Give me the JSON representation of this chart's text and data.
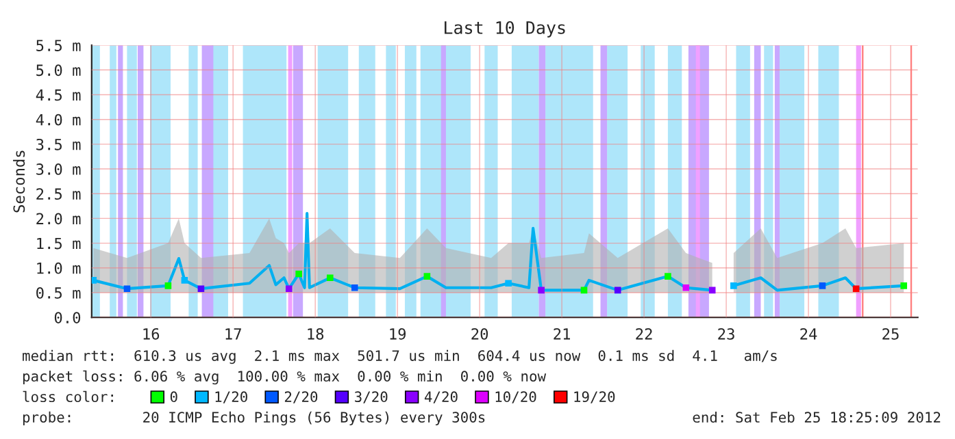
{
  "chart_data": {
    "type": "line",
    "title": "Last 10 Days",
    "ylabel": "Seconds",
    "legend_title": "loss color:",
    "xlim": [
      15.28,
      25.33
    ],
    "xticks": [
      16,
      17,
      18,
      19,
      20,
      21,
      22,
      23,
      24,
      25
    ],
    "ylim": [
      0,
      5.5
    ],
    "yticks": [
      {
        "value": 0,
        "label": "0.0"
      },
      {
        "value": 0.5,
        "label": "0.5 m"
      },
      {
        "value": 1.0,
        "label": "1.0 m"
      },
      {
        "value": 1.5,
        "label": "1.5 m"
      },
      {
        "value": 2.0,
        "label": "2.0 m"
      },
      {
        "value": 2.5,
        "label": "2.5 m"
      },
      {
        "value": 3.0,
        "label": "3.0 m"
      },
      {
        "value": 3.5,
        "label": "3.5 m"
      },
      {
        "value": 4.0,
        "label": "4.0 m"
      },
      {
        "value": 4.5,
        "label": "4.5 m"
      },
      {
        "value": 5.0,
        "label": "5.0 m"
      },
      {
        "value": 5.5,
        "label": "5.5 m"
      }
    ],
    "grid": true,
    "legend": "bottom",
    "series": [
      {
        "color": "#00b0f0",
        "x": [
          15.3,
          15.71,
          16.21,
          16.34,
          16.41,
          16.61,
          17.2,
          17.44,
          17.52,
          17.62,
          17.68,
          17.8,
          17.87,
          17.9,
          17.93,
          18.18,
          18.48,
          19.03,
          19.36,
          19.59,
          20.14,
          20.35,
          20.6,
          20.65,
          20.75,
          21.27,
          21.33,
          21.68,
          22.29,
          22.51,
          22.83,
          22.95,
          23.09,
          23.42,
          23.62,
          24.17,
          24.45,
          24.58,
          25.16
        ],
        "values": [
          0.75,
          0.58,
          0.64,
          1.19,
          0.75,
          0.58,
          0.69,
          1.05,
          0.66,
          0.8,
          0.58,
          0.88,
          0.6,
          2.1,
          0.6,
          0.8,
          0.6,
          0.58,
          0.83,
          0.6,
          0.6,
          0.69,
          0.6,
          1.8,
          0.55,
          0.55,
          0.75,
          0.55,
          0.83,
          0.6,
          0.55,
          null,
          0.64,
          0.8,
          0.55,
          0.64,
          0.8,
          0.58,
          0.64
        ],
        "lower": [
          0.5,
          0.5,
          0.5,
          0.5,
          0.5,
          0.5,
          0.5,
          0.5,
          0.5,
          0.5,
          0.5,
          0.5,
          0.5,
          0.5,
          0.5,
          0.5,
          0.5,
          0.5,
          0.5,
          0.5,
          0.5,
          0.5,
          0.5,
          0.5,
          0.5,
          0.5,
          0.5,
          0.5,
          0.5,
          0.5,
          0.5,
          null,
          0.5,
          0.5,
          0.5,
          0.5,
          0.5,
          0.5,
          0.5
        ],
        "upper": [
          1.4,
          1.2,
          1.5,
          2.0,
          1.5,
          1.2,
          1.3,
          2.0,
          1.6,
          1.5,
          1.3,
          1.5,
          1.5,
          2.1,
          1.5,
          1.8,
          1.3,
          1.2,
          1.8,
          1.4,
          1.2,
          1.5,
          1.5,
          1.8,
          1.2,
          1.3,
          1.7,
          1.2,
          1.8,
          1.3,
          1.1,
          null,
          1.3,
          1.8,
          1.2,
          1.5,
          1.8,
          1.4,
          1.5
        ]
      },
      {
        "type": "scatter",
        "name": "0",
        "color": "#00ff00",
        "x": [
          16.21,
          17.8,
          18.18,
          19.36,
          21.27,
          22.29,
          25.16
        ],
        "values": [
          0.64,
          0.88,
          0.8,
          0.83,
          0.55,
          0.83,
          0.64
        ]
      },
      {
        "type": "scatter",
        "name": "1/20",
        "color": "#00b8ff",
        "x": [
          15.3,
          16.41,
          20.35,
          23.09
        ],
        "values": [
          0.75,
          0.75,
          0.69,
          0.64
        ]
      },
      {
        "type": "scatter",
        "name": "2/20",
        "color": "#0059ff",
        "x": [
          15.71,
          18.48,
          24.17
        ],
        "values": [
          0.58,
          0.6,
          0.64
        ]
      },
      {
        "type": "scatter",
        "name": "3/20",
        "color": "#5500ff",
        "x": [
          16.61,
          21.68
        ],
        "values": [
          0.58,
          0.55
        ]
      },
      {
        "type": "scatter",
        "name": "4/20",
        "color": "#8a00ff",
        "x": [
          17.68,
          20.75,
          22.83
        ],
        "values": [
          0.58,
          0.55,
          0.55
        ]
      },
      {
        "type": "scatter",
        "name": "10/20",
        "color": "#dd00ff",
        "x": [
          22.51
        ],
        "values": [
          0.6
        ]
      },
      {
        "type": "scatter",
        "name": "19/20",
        "color": "#ff0000",
        "x": [
          24.58
        ],
        "values": [
          0.58
        ]
      }
    ],
    "bands": [
      {
        "axis": "x",
        "from": 15.28,
        "to": 15.38,
        "color": "#aee6fa"
      },
      {
        "axis": "x",
        "from": 15.5,
        "to": 15.58,
        "color": "#aee6fa"
      },
      {
        "axis": "x",
        "from": 15.71,
        "to": 15.83,
        "color": "#aee6fa"
      },
      {
        "axis": "x",
        "from": 15.99,
        "to": 16.24,
        "color": "#aee6fa"
      },
      {
        "axis": "x",
        "from": 16.46,
        "to": 16.57,
        "color": "#aee6fa"
      },
      {
        "axis": "x",
        "from": 16.74,
        "to": 16.94,
        "color": "#aee6fa"
      },
      {
        "axis": "x",
        "from": 17.12,
        "to": 17.65,
        "color": "#aee6fa"
      },
      {
        "axis": "x",
        "from": 18.03,
        "to": 18.4,
        "color": "#aee6fa"
      },
      {
        "axis": "x",
        "from": 18.53,
        "to": 18.73,
        "color": "#aee6fa"
      },
      {
        "axis": "x",
        "from": 18.86,
        "to": 18.98,
        "color": "#aee6fa"
      },
      {
        "axis": "x",
        "from": 19.09,
        "to": 19.23,
        "color": "#aee6fa"
      },
      {
        "axis": "x",
        "from": 19.28,
        "to": 19.89,
        "color": "#aee6fa"
      },
      {
        "axis": "x",
        "from": 20.06,
        "to": 20.22,
        "color": "#aee6fa"
      },
      {
        "axis": "x",
        "from": 20.39,
        "to": 20.72,
        "color": "#aee6fa"
      },
      {
        "axis": "x",
        "from": 20.8,
        "to": 21.38,
        "color": "#aee6fa"
      },
      {
        "axis": "x",
        "from": 21.55,
        "to": 21.8,
        "color": "#aee6fa"
      },
      {
        "axis": "x",
        "from": 21.96,
        "to": 22.13,
        "color": "#aee6fa"
      },
      {
        "axis": "x",
        "from": 22.29,
        "to": 22.46,
        "color": "#aee6fa"
      },
      {
        "axis": "x",
        "from": 23.12,
        "to": 23.29,
        "color": "#aee6fa"
      },
      {
        "axis": "x",
        "from": 23.46,
        "to": 23.57,
        "color": "#aee6fa"
      },
      {
        "axis": "x",
        "from": 23.65,
        "to": 23.95,
        "color": "#aee6fa"
      },
      {
        "axis": "x",
        "from": 24.12,
        "to": 24.37,
        "color": "#aee6fa"
      },
      {
        "axis": "x",
        "from": 15.6,
        "to": 15.66,
        "color": "#c8a8ff"
      },
      {
        "axis": "x",
        "from": 15.84,
        "to": 15.91,
        "color": "#c8a8ff"
      },
      {
        "axis": "x",
        "from": 16.62,
        "to": 16.76,
        "color": "#c8a8ff"
      },
      {
        "axis": "x",
        "from": 17.73,
        "to": 17.85,
        "color": "#c8a8ff"
      },
      {
        "axis": "x",
        "from": 19.53,
        "to": 19.59,
        "color": "#c8a8ff"
      },
      {
        "axis": "x",
        "from": 20.72,
        "to": 20.8,
        "color": "#c8a8ff"
      },
      {
        "axis": "x",
        "from": 21.47,
        "to": 21.55,
        "color": "#c8a8ff"
      },
      {
        "axis": "x",
        "from": 22.54,
        "to": 22.79,
        "color": "#c8a8ff"
      },
      {
        "axis": "x",
        "from": 23.34,
        "to": 23.42,
        "color": "#c8a8ff"
      },
      {
        "axis": "x",
        "from": 23.59,
        "to": 23.65,
        "color": "#c8a8ff"
      },
      {
        "axis": "x",
        "from": 17.67,
        "to": 17.72,
        "color": "#f0a0ff"
      },
      {
        "axis": "x",
        "from": 22.63,
        "to": 22.68,
        "color": "#f0a0ff"
      },
      {
        "axis": "x",
        "from": 24.58,
        "to": 24.64,
        "color": "#f0a0ff"
      },
      {
        "axis": "x",
        "from": 24.65,
        "to": 24.67,
        "color": "#ff8080"
      },
      {
        "axis": "x",
        "from": 25.24,
        "to": 25.26,
        "color": "#ff8080"
      }
    ],
    "annotations": [
      "median rtt:  610.3 us avg  2.1 ms max  501.7 us min  604.4 us now  0.1 ms sd  4.1   am/s",
      "packet loss: 6.06 % avg  100.00 % max  0.00 % min  0.00 % now",
      "probe:        20 ICMP Echo Pings (56 Bytes) every 300s",
      "end: Sat Feb 25 18:25:09 2012"
    ]
  }
}
